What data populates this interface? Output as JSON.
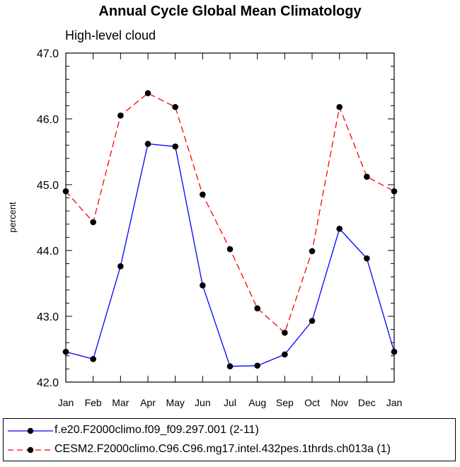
{
  "chart_data": {
    "type": "line",
    "title": "Annual Cycle Global Mean Climatology",
    "subtitle": "High-level cloud",
    "xlabel": "",
    "ylabel": "percent",
    "categories": [
      "Jan",
      "Feb",
      "Mar",
      "Apr",
      "May",
      "Jun",
      "Jul",
      "Aug",
      "Sep",
      "Oct",
      "Nov",
      "Dec",
      "Jan"
    ],
    "ylim": [
      42.0,
      47.0
    ],
    "yticks": [
      "42.0",
      "43.0",
      "44.0",
      "45.0",
      "46.0",
      "47.0"
    ],
    "grid": false,
    "legend_position": "bottom",
    "series": [
      {
        "name": "f.e20.F2000climo.f09_f09.297.001 (2-11)",
        "color": "#0000ff",
        "style": "solid",
        "values": [
          42.46,
          42.35,
          43.76,
          45.62,
          45.58,
          43.47,
          42.24,
          42.25,
          42.42,
          42.93,
          44.33,
          43.88,
          42.46
        ]
      },
      {
        "name": "CESM2.F2000climo.C96.C96.mg17.intel.432pes.1thrds.ch013a (1)",
        "color": "#ff0000",
        "style": "dashed",
        "values": [
          44.9,
          44.43,
          46.05,
          46.39,
          46.18,
          44.85,
          44.02,
          43.12,
          42.75,
          43.99,
          46.18,
          45.12,
          44.9
        ]
      }
    ]
  }
}
